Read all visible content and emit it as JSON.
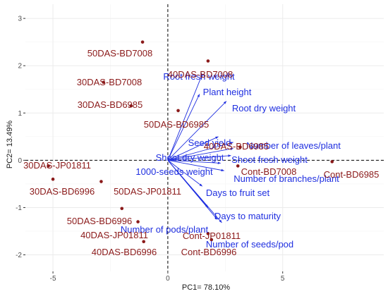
{
  "chart_data": {
    "type": "scatter",
    "subtype": "pca-biplot",
    "title": "",
    "xlabel": "PC1= 78.10%",
    "ylabel": "PC2= 13.49%",
    "xlim": [
      -6.2,
      9.4
    ],
    "ylim": [
      -2.35,
      3.3
    ],
    "xticks": [
      -5,
      0,
      5
    ],
    "yticks": [
      -2,
      -1,
      0,
      1,
      2,
      3
    ],
    "grid": true,
    "reference_lines": {
      "x": 0,
      "y": 0,
      "style": "dashed"
    },
    "colors": {
      "observation": "#8b1a1a",
      "variable": "#1f2fe0",
      "grid": "#ebebeb"
    },
    "observations": [
      {
        "label": "50DAS-BD7008",
        "x": -1.1,
        "y": 2.5
      },
      {
        "label": "40DAS-BD7008",
        "x": 1.75,
        "y": 2.1
      },
      {
        "label": "30DAS-BD7008",
        "x": -2.8,
        "y": 1.65
      },
      {
        "label": "30DAS-BD6985",
        "x": -1.6,
        "y": 1.15
      },
      {
        "label": "50DAS-BD6985",
        "x": 0.45,
        "y": 1.05
      },
      {
        "label": "40DAS-BD6985",
        "x": 3.15,
        "y": 0.28
      },
      {
        "label": "Cont-BD7008",
        "x": 3.05,
        "y": -0.12
      },
      {
        "label": "Cont-BD6985",
        "x": 7.15,
        "y": -0.03
      },
      {
        "label": "30DAS-JP01811",
        "x": -5.2,
        "y": -0.12
      },
      {
        "label": "30DAS-BD6996",
        "x": -5.0,
        "y": -0.4
      },
      {
        "label": "50DAS-JP01811",
        "x": -2.9,
        "y": -0.45
      },
      {
        "label": "50DAS-BD6996",
        "x": -2.0,
        "y": -1.02
      },
      {
        "label": "40DAS-JP01811",
        "x": -1.3,
        "y": -1.3
      },
      {
        "label": "Cont-JP01811",
        "x": 1.75,
        "y": -1.55
      },
      {
        "label": "40DAS-BD6996",
        "x": -1.05,
        "y": -1.72
      },
      {
        "label": "Cont-BD6996",
        "x": 1.9,
        "y": -1.68
      }
    ],
    "variables": [
      {
        "label": "Root fresh weight",
        "x": 1.5,
        "y": 1.82
      },
      {
        "label": "Plant height",
        "x": 1.38,
        "y": 1.4
      },
      {
        "label": "Root dry weight",
        "x": 2.55,
        "y": 1.25
      },
      {
        "label": "Seed yield",
        "x": 2.2,
        "y": 0.5
      },
      {
        "label": "Number of leaves/plant",
        "x": 2.85,
        "y": 0.38
      },
      {
        "label": "Shoot fresh weight",
        "x": 2.85,
        "y": 0.25
      },
      {
        "label": "Shoot dry weight",
        "x": 2.75,
        "y": 0.1
      },
      {
        "label": "1000-seeds weight",
        "x": 2.3,
        "y": -0.06
      },
      {
        "label": "Number of branches/plant",
        "x": 2.45,
        "y": -0.22
      },
      {
        "label": "Days to fruit set",
        "x": 1.5,
        "y": -0.55
      },
      {
        "label": "Days to maturity",
        "x": 1.75,
        "y": -1.0
      },
      {
        "label": "Number of pods/plant",
        "x": 2.35,
        "y": -1.32
      },
      {
        "label": "Number of seeds/pod",
        "x": 2.15,
        "y": -1.25
      }
    ]
  }
}
